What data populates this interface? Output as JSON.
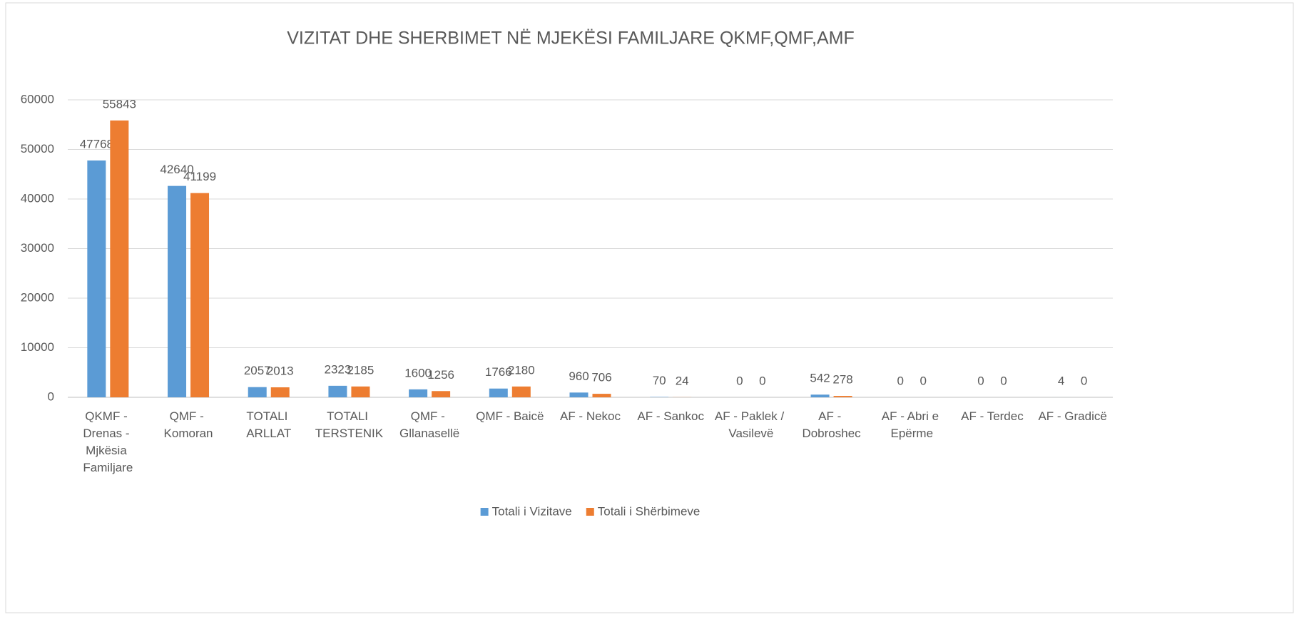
{
  "chart_data": {
    "type": "bar",
    "title": "VIZITAT DHE SHERBIMET NË MJEKËSI FAMILJARE QKMF,QMF,AMF",
    "categories": [
      "QKMF - Drenas - Mjkësia Familjare",
      "QMF - Komoran",
      "TOTALI ARLLAT",
      "TOTALI TERSTENIK",
      "QMF - Gllanasellë",
      "QMF - Baicë",
      "AF - Nekoc",
      "AF - Sankoc",
      "AF - Paklek / Vasilevë",
      "AF - Dobroshec",
      "AF - Abri e Epërme",
      "AF - Terdec",
      "AF - Gradicë"
    ],
    "series": [
      {
        "name": "Totali i Vizitave",
        "color": "#5b9bd5",
        "values": [
          47768,
          42640,
          2057,
          2323,
          1600,
          1766,
          960,
          70,
          0,
          542,
          0,
          0,
          4
        ]
      },
      {
        "name": "Totali i Shërbimeve",
        "color": "#ed7d31",
        "values": [
          55843,
          41199,
          2013,
          2185,
          1256,
          2180,
          706,
          24,
          0,
          278,
          0,
          0,
          0
        ]
      }
    ],
    "ylim": [
      0,
      60000
    ],
    "yticks": [
      0,
      10000,
      20000,
      30000,
      40000,
      50000,
      60000
    ],
    "grid": true,
    "legend": "bottom"
  }
}
